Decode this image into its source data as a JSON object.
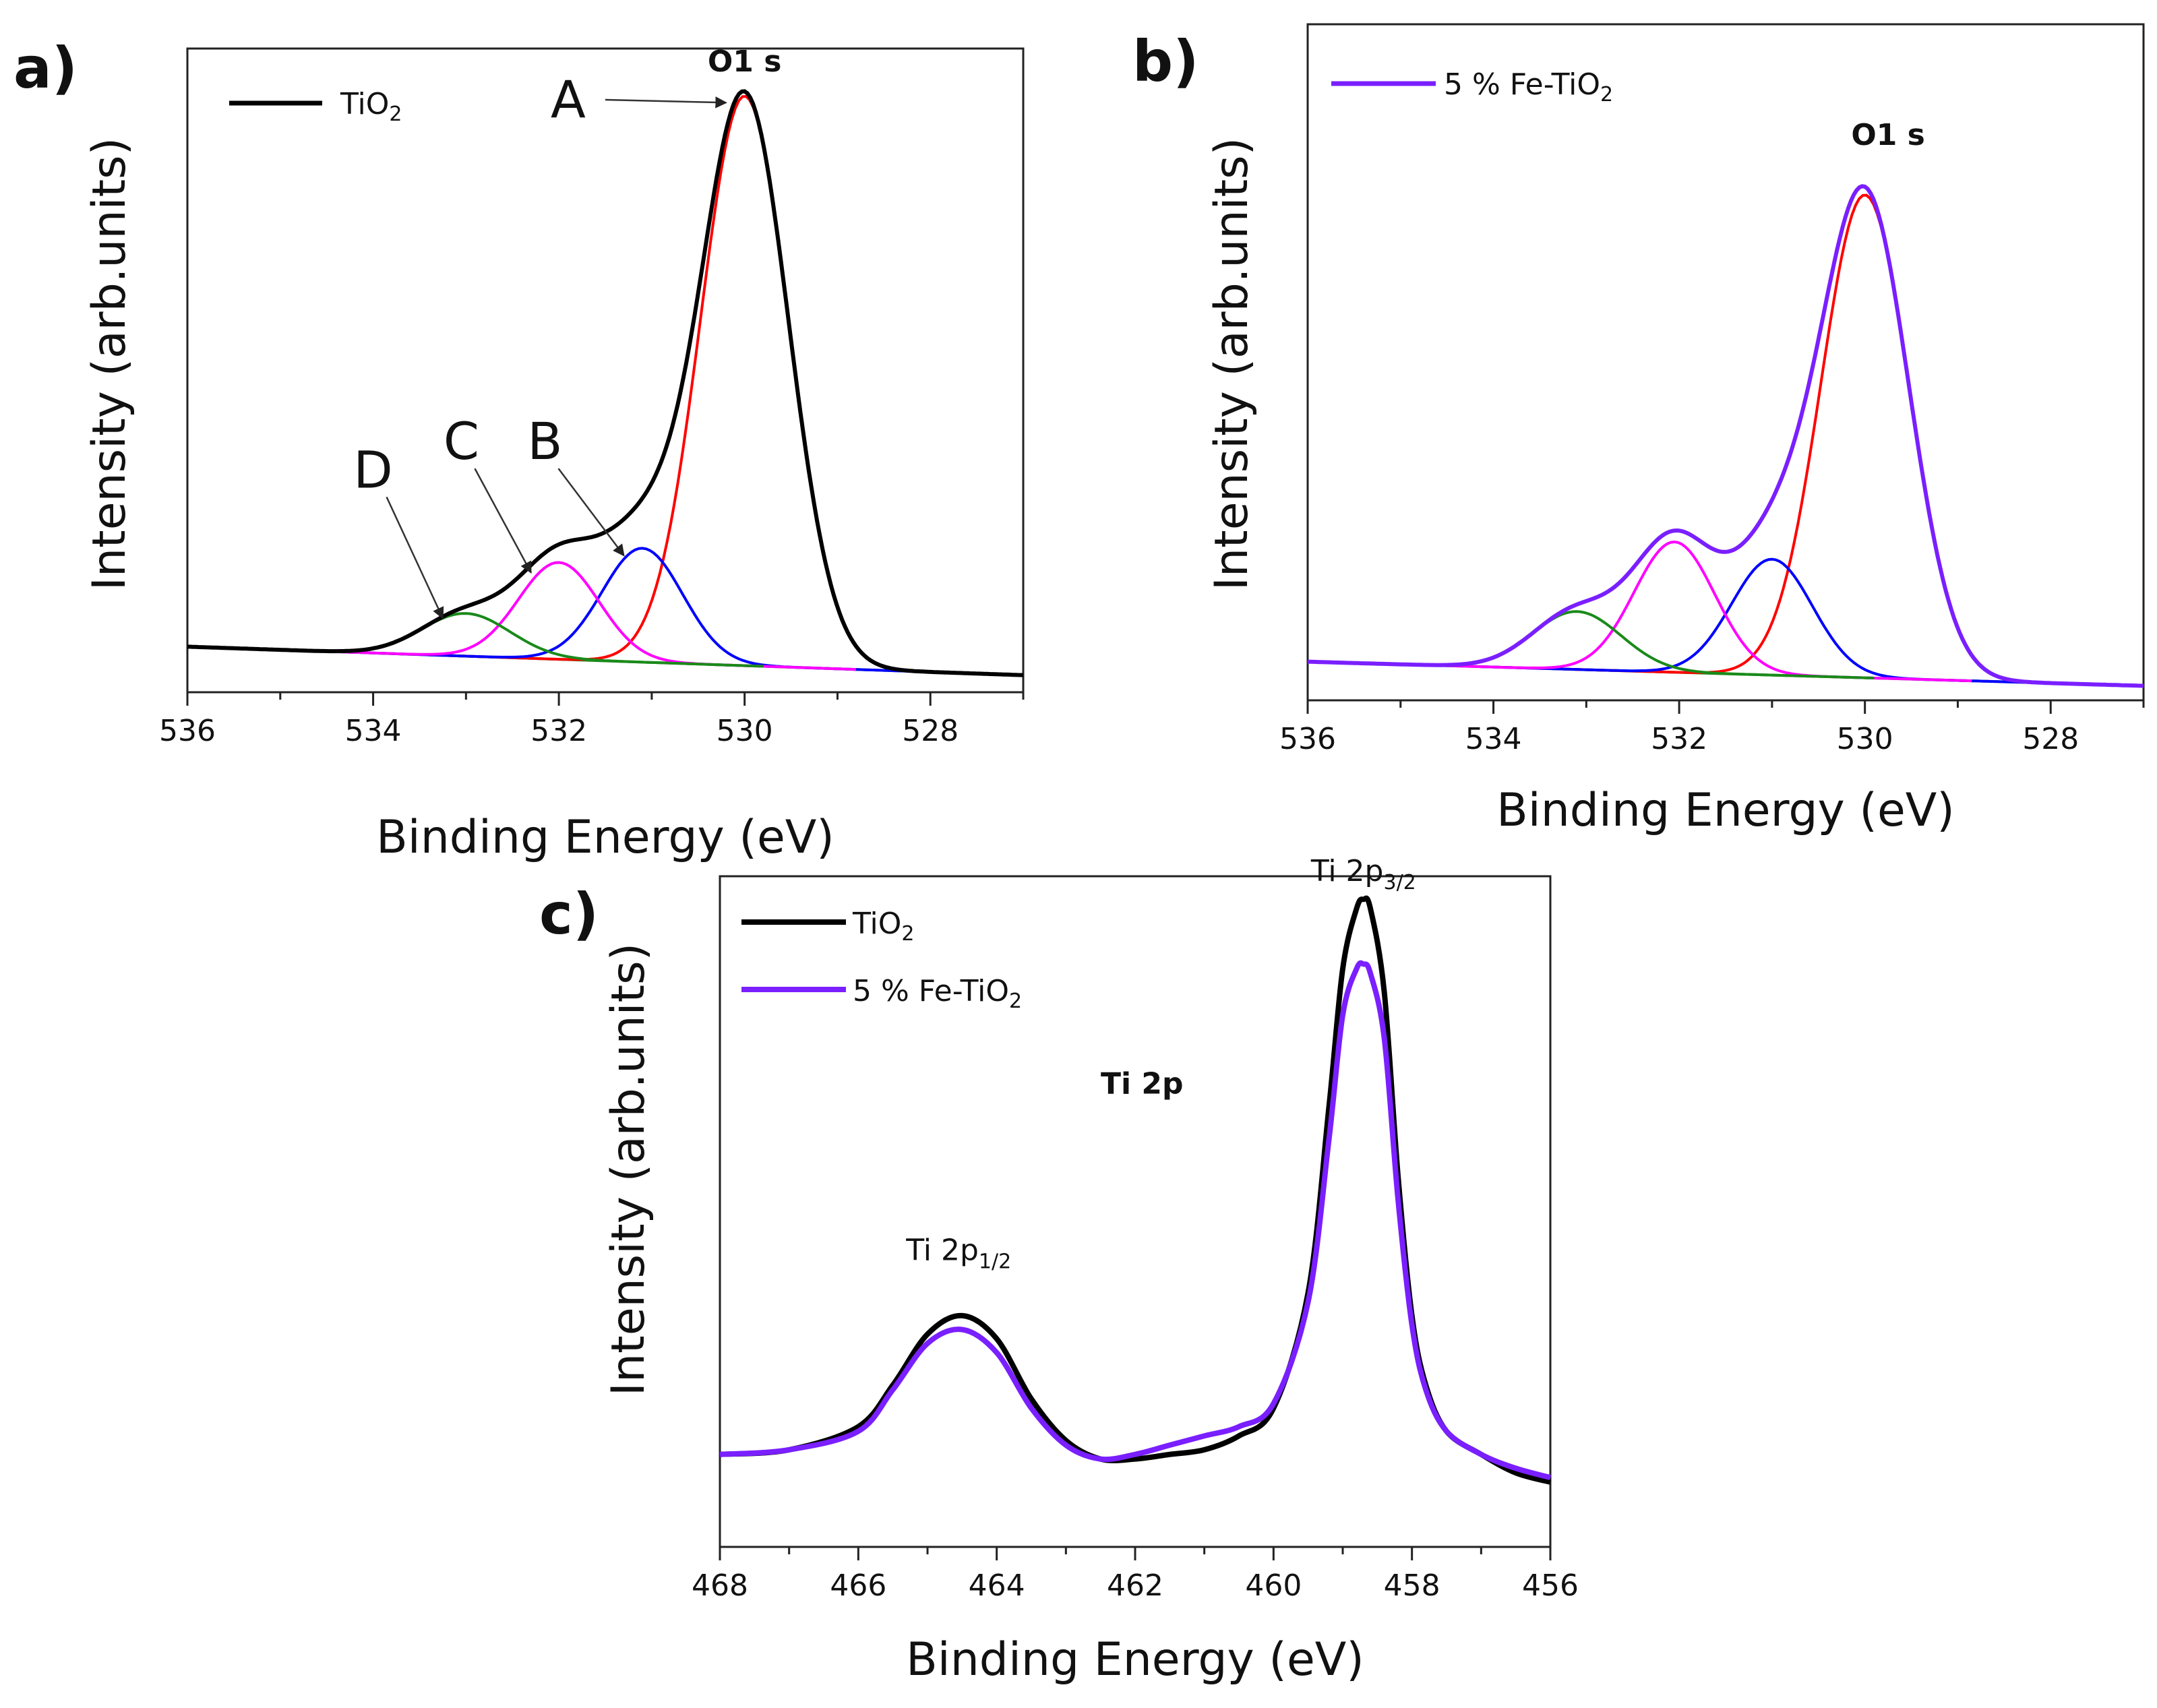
{
  "colors": {
    "tio2": "#000000",
    "fe_tio2": "#7a1fff",
    "peak_A": "#ff0000",
    "peak_B": "#0000ff",
    "peak_C": "#ff00ff",
    "peak_D": "#1a8a1a",
    "background": "#1a8a1a"
  },
  "chart_data": [
    {
      "id": "a",
      "type": "line",
      "panel_label": "a)",
      "title": "O1 s",
      "xlabel": "Binding Energy (eV)",
      "ylabel": "Intensity (arb.units)",
      "xlim": [
        536,
        527
      ],
      "ylim": [
        -0.05,
        1.08
      ],
      "xticks": [
        536,
        534,
        532,
        530,
        528
      ],
      "x_reversed": true,
      "legend": [
        {
          "label": "TiO",
          "sub": "2",
          "color_key": "tio2"
        }
      ],
      "legend_position": "top-left",
      "baseline": {
        "x_high": 536,
        "y_high": 0.03,
        "x_low": 527,
        "y_low": -0.02
      },
      "components": [
        {
          "name": "A",
          "center": 530.0,
          "height": 1.0,
          "width": 0.6,
          "color_key": "peak_A"
        },
        {
          "name": "B",
          "center": 531.1,
          "height": 0.2,
          "width": 0.55,
          "color_key": "peak_B"
        },
        {
          "name": "C",
          "center": 532.0,
          "height": 0.17,
          "width": 0.55,
          "color_key": "peak_C"
        },
        {
          "name": "D",
          "center": 533.0,
          "height": 0.075,
          "width": 0.6,
          "color_key": "peak_D"
        }
      ],
      "envelope_color_key": "tio2",
      "peak_labels": [
        {
          "text": "A",
          "label_x": 531.9,
          "label_y": 0.99,
          "arrow_to_x": 530.2,
          "arrow_to_y": 0.985
        },
        {
          "text": "B",
          "label_x": 532.15,
          "label_y": 0.39,
          "arrow_to_x": 531.3,
          "arrow_to_y": 0.19
        },
        {
          "text": "C",
          "label_x": 533.05,
          "label_y": 0.39,
          "arrow_to_x": 532.3,
          "arrow_to_y": 0.16
        },
        {
          "text": "D",
          "label_x": 534.0,
          "label_y": 0.34,
          "arrow_to_x": 533.25,
          "arrow_to_y": 0.08
        }
      ],
      "title_position": {
        "x": 530.0,
        "y": 1.04
      }
    },
    {
      "id": "b",
      "type": "line",
      "panel_label": "b)",
      "title": "O1 s",
      "xlabel": "Binding Energy (eV)",
      "ylabel": "Intensity (arb.units)",
      "xlim": [
        536,
        527
      ],
      "ylim": [
        -0.05,
        1.35
      ],
      "xticks": [
        536,
        534,
        532,
        530,
        528
      ],
      "x_reversed": true,
      "legend": [
        {
          "label": "5 % Fe-TiO",
          "sub": "2",
          "color_key": "fe_tio2"
        }
      ],
      "legend_position": "top-left",
      "baseline": {
        "x_high": 536,
        "y_high": 0.03,
        "x_low": 527,
        "y_low": -0.02
      },
      "components": [
        {
          "name": "A",
          "center": 530.0,
          "height": 1.0,
          "width": 0.6,
          "color_key": "peak_A"
        },
        {
          "name": "B",
          "center": 531.0,
          "height": 0.24,
          "width": 0.55,
          "color_key": "peak_B"
        },
        {
          "name": "C",
          "center": 532.05,
          "height": 0.27,
          "width": 0.55,
          "color_key": "peak_C"
        },
        {
          "name": "D",
          "center": 533.1,
          "height": 0.12,
          "width": 0.6,
          "color_key": "peak_D"
        }
      ],
      "envelope_color_key": "fe_tio2",
      "peak_labels": [],
      "title_position": {
        "x": 529.75,
        "y": 1.1
      }
    },
    {
      "id": "c",
      "type": "line",
      "panel_label": "c)",
      "title": "Ti 2p",
      "xlabel": "Binding Energy (eV)",
      "ylabel": "Intensity (arb.units)",
      "xlim": [
        468,
        456
      ],
      "ylim": [
        -0.2,
        1.25
      ],
      "xticks": [
        468,
        466,
        464,
        462,
        460,
        458,
        456
      ],
      "x_reversed": true,
      "legend": [
        {
          "label": "TiO",
          "sub": "2",
          "color_key": "tio2"
        },
        {
          "label": "5 % Fe-TiO",
          "sub": "2",
          "color_key": "fe_tio2"
        }
      ],
      "legend_position": "top-left",
      "series": [
        {
          "name": "TiO2",
          "color_key": "tio2",
          "x": [
            468,
            467,
            466,
            465.5,
            465,
            464.5,
            464,
            463.5,
            463,
            462.5,
            462,
            461.5,
            461,
            460.5,
            460,
            459.5,
            459.2,
            459,
            458.8,
            458.7,
            458.6,
            458.4,
            458.2,
            458,
            457.8,
            457.5,
            457,
            456.5,
            456
          ],
          "values": [
            0.0,
            0.01,
            0.06,
            0.15,
            0.26,
            0.3,
            0.25,
            0.12,
            0.03,
            -0.01,
            -0.01,
            0.0,
            0.01,
            0.04,
            0.1,
            0.35,
            0.75,
            1.05,
            1.18,
            1.2,
            1.18,
            1.0,
            0.6,
            0.3,
            0.15,
            0.05,
            0.0,
            -0.04,
            -0.06
          ]
        },
        {
          "name": "5 % Fe-TiO2",
          "color_key": "fe_tio2",
          "x": [
            468,
            467,
            466,
            465.5,
            465,
            464.5,
            464,
            463.5,
            463,
            462.5,
            462,
            461.5,
            461,
            460.5,
            460,
            459.5,
            459.2,
            459,
            458.8,
            458.7,
            458.6,
            458.4,
            458.2,
            458,
            457.8,
            457.5,
            457,
            456.5,
            456
          ],
          "values": [
            0.0,
            0.01,
            0.05,
            0.14,
            0.24,
            0.27,
            0.22,
            0.1,
            0.02,
            -0.01,
            0.0,
            0.02,
            0.04,
            0.06,
            0.11,
            0.33,
            0.68,
            0.95,
            1.05,
            1.06,
            1.04,
            0.9,
            0.55,
            0.28,
            0.14,
            0.05,
            0.0,
            -0.03,
            -0.05
          ]
        }
      ],
      "annotations": [
        {
          "text": "Ti 2p",
          "sub": "3/2",
          "x": 458.7,
          "y": 1.24
        },
        {
          "text": "Ti 2p",
          "sub": "1/2",
          "x": 464.55,
          "y": 0.42
        }
      ],
      "title_position": {
        "x": 461.9,
        "y": 0.78
      }
    }
  ]
}
